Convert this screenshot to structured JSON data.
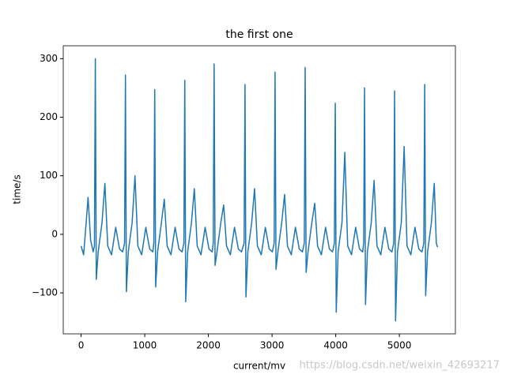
{
  "chart_data": {
    "type": "line",
    "title": "the first one",
    "x_label": "current/mv",
    "y_label": "time/s",
    "watermark": "https://blog.csdn.net/weixin_42693217",
    "color": "#1f77b4",
    "x": [
      0,
      40,
      80,
      110,
      150,
      190,
      210,
      224,
      239,
      269,
      329,
      374,
      419,
      479,
      544,
      604,
      654,
      683,
      697,
      712,
      742,
      802,
      847,
      892,
      952,
      1017,
      1077,
      1127,
      1143,
      1157,
      1172,
      1202,
      1262,
      1307,
      1352,
      1412,
      1477,
      1537,
      1587,
      1615,
      1629,
      1644,
      1674,
      1734,
      1779,
      1824,
      1884,
      1949,
      2009,
      2059,
      2076,
      2090,
      2105,
      2135,
      2195,
      2240,
      2285,
      2345,
      2410,
      2470,
      2520,
      2561,
      2575,
      2590,
      2620,
      2680,
      2725,
      2770,
      2830,
      2895,
      2955,
      3005,
      3033,
      3047,
      3062,
      3092,
      3152,
      3197,
      3242,
      3302,
      3367,
      3427,
      3477,
      3506,
      3520,
      3535,
      3565,
      3625,
      3670,
      3715,
      3775,
      3840,
      3900,
      3950,
      3979,
      3993,
      4008,
      4038,
      4098,
      4143,
      4188,
      4248,
      4313,
      4373,
      4423,
      4439,
      4453,
      4468,
      4498,
      4558,
      4603,
      4648,
      4708,
      4773,
      4833,
      4883,
      4911,
      4925,
      4940,
      4970,
      5030,
      5075,
      5120,
      5180,
      5245,
      5305,
      5355,
      5384,
      5398,
      5413,
      5443,
      5503,
      5548,
      5580,
      5600
    ],
    "values": [
      -20,
      -35,
      20,
      63,
      -10,
      -30,
      -20,
      300,
      -77,
      -30,
      20,
      87,
      -20,
      -35,
      12,
      -25,
      -30,
      -15,
      272,
      -98,
      -30,
      20,
      100,
      -20,
      -35,
      12,
      -25,
      -30,
      -15,
      247,
      -90,
      -30,
      20,
      60,
      -20,
      -35,
      12,
      -25,
      -30,
      -15,
      263,
      -115,
      -30,
      20,
      78,
      -20,
      -35,
      12,
      -25,
      -30,
      -15,
      291,
      -53,
      -30,
      20,
      50,
      -20,
      -35,
      12,
      -25,
      -30,
      -15,
      256,
      -107,
      -30,
      20,
      78,
      -20,
      -35,
      12,
      -25,
      -30,
      -15,
      277,
      -60,
      -30,
      20,
      68,
      -20,
      -35,
      12,
      -25,
      -30,
      -15,
      285,
      -65,
      -30,
      20,
      53,
      -20,
      -35,
      12,
      -25,
      -30,
      -15,
      224,
      -133,
      -30,
      20,
      140,
      -20,
      -35,
      12,
      -25,
      -30,
      -15,
      250,
      -120,
      -30,
      20,
      92,
      -20,
      -35,
      12,
      -25,
      -30,
      -15,
      245,
      -148,
      -30,
      20,
      150,
      -20,
      -35,
      12,
      -25,
      -30,
      -15,
      256,
      -105,
      -30,
      20,
      87,
      -15,
      -22
    ],
    "xlim": [
      -280,
      5880
    ],
    "ylim": [
      -170,
      322
    ],
    "xticks": [
      0,
      1000,
      2000,
      3000,
      4000,
      5000
    ],
    "yticks": [
      {
        "value": -100,
        "label": "−100"
      },
      0,
      100,
      200,
      300
    ]
  }
}
